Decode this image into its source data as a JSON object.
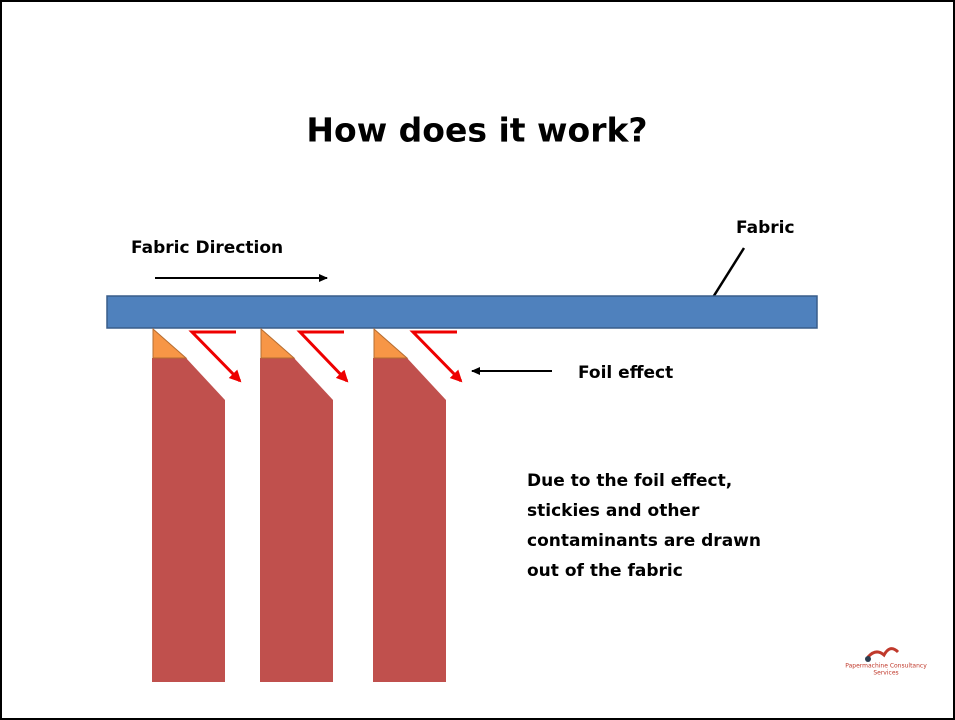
{
  "title": "How does it work?",
  "labels": {
    "fabric_direction": "Fabric Direction",
    "fabric": "Fabric",
    "foil_effect": "Foil effect"
  },
  "description": [
    "Due to the foil effect,",
    "stickies and other",
    "contaminants are drawn",
    "out of the fabric"
  ],
  "logo": {
    "line1": "Papermachine Consultancy",
    "line2": "Services"
  }
}
